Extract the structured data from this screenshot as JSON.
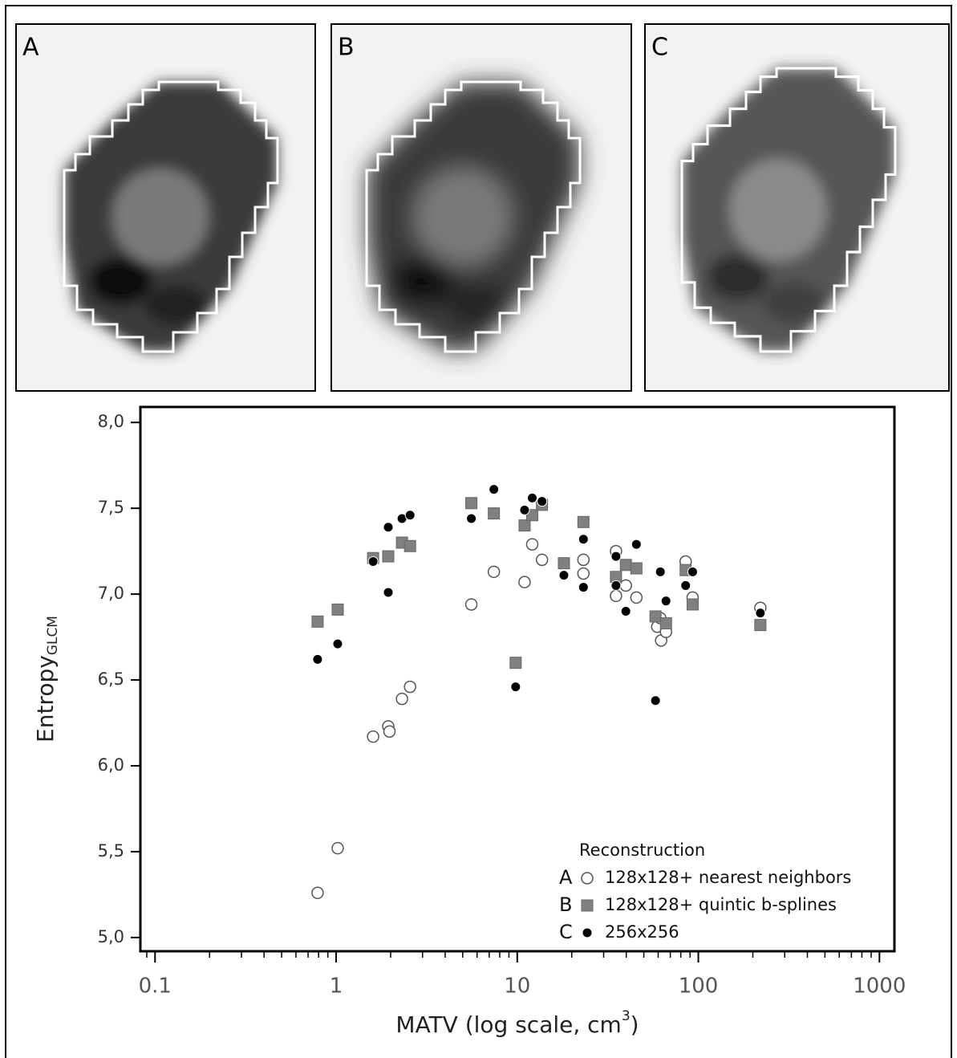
{
  "panels": [
    {
      "label": "A"
    },
    {
      "label": "B"
    },
    {
      "label": "C"
    }
  ],
  "chart_data": {
    "type": "scatter",
    "xlabel": "MATV (log scale, cm",
    "xlabel_sup": "3",
    "xlabel_end": ")",
    "ylabel": "Entropy",
    "ylabel_sub": "GLCM",
    "xscale": "log",
    "xlim": [
      0.083,
      1210
    ],
    "xticks": [
      0.1,
      1,
      10,
      100,
      1000
    ],
    "xminorticks": [
      0.09,
      0.2,
      0.3,
      0.4,
      0.5,
      0.6,
      0.7,
      0.8,
      0.9,
      2,
      3,
      4,
      5,
      6,
      7,
      8,
      9,
      20,
      30,
      40,
      50,
      60,
      70,
      80,
      90,
      200,
      300,
      400,
      500,
      600,
      700,
      800,
      900
    ],
    "ylim": [
      4.92,
      8.09
    ],
    "yticks": [
      {
        "value": 5,
        "label": "5,0"
      },
      {
        "value": 5.5,
        "label": "5,5"
      },
      {
        "value": 6,
        "label": "6,0"
      },
      {
        "value": 6.5,
        "label": "6,5"
      },
      {
        "value": 7,
        "label": "7,0"
      },
      {
        "value": 7.5,
        "label": "7,5"
      },
      {
        "value": 8,
        "label": "8,0"
      }
    ],
    "legend_title": "Reconstruction",
    "legend": "lower right",
    "series": [
      {
        "key": "A",
        "name": "128x128+ nearest neighbors",
        "marker": "open-circle",
        "color": "#ffffff",
        "x": [
          0.79,
          1.02,
          1.6,
          1.94,
          1.97,
          2.31,
          2.56,
          5.58,
          7.43,
          10.98,
          12.1,
          13.7,
          23.2,
          23.2,
          35.1,
          35.1,
          39.8,
          45.5,
          59.3,
          61.7,
          62.3,
          66.3,
          85.1,
          93,
          220
        ],
        "values": [
          5.26,
          5.52,
          6.17,
          6.23,
          6.2,
          6.39,
          6.46,
          6.94,
          7.13,
          7.07,
          7.29,
          7.2,
          7.2,
          7.12,
          7.25,
          6.99,
          7.05,
          6.98,
          6.81,
          6.86,
          6.73,
          6.78,
          7.19,
          6.98,
          6.92
        ]
      },
      {
        "key": "B",
        "name": "128x128+ quintic b-splines",
        "marker": "square",
        "color": "#808080",
        "x": [
          0.79,
          1.02,
          1.6,
          1.94,
          2.31,
          2.56,
          5.58,
          7.43,
          9.8,
          10.98,
          12.1,
          13.7,
          18.1,
          23.2,
          35.1,
          39.8,
          45.5,
          58,
          66.3,
          85.1,
          93,
          220
        ],
        "values": [
          6.84,
          6.91,
          7.21,
          7.22,
          7.3,
          7.28,
          7.53,
          7.47,
          6.6,
          7.4,
          7.46,
          7.52,
          7.18,
          7.42,
          7.1,
          7.17,
          7.15,
          6.87,
          6.83,
          7.14,
          6.94,
          6.82
        ]
      },
      {
        "key": "C",
        "name": "256x256",
        "marker": "filled-circle",
        "color": "#000000",
        "x": [
          0.79,
          1.02,
          1.6,
          1.94,
          1.94,
          2.31,
          2.56,
          5.58,
          7.43,
          9.8,
          10.98,
          12.1,
          13.7,
          18.1,
          23.2,
          23.2,
          35.1,
          35.1,
          39.8,
          45.5,
          58,
          61.7,
          66.3,
          85.1,
          93,
          220
        ],
        "values": [
          6.62,
          6.71,
          7.19,
          7.39,
          7.01,
          7.44,
          7.46,
          7.44,
          7.61,
          6.46,
          7.49,
          7.56,
          7.54,
          7.11,
          7.32,
          7.04,
          7.22,
          7.05,
          6.9,
          7.29,
          6.38,
          7.13,
          6.96,
          7.05,
          7.13,
          6.89
        ]
      }
    ]
  }
}
